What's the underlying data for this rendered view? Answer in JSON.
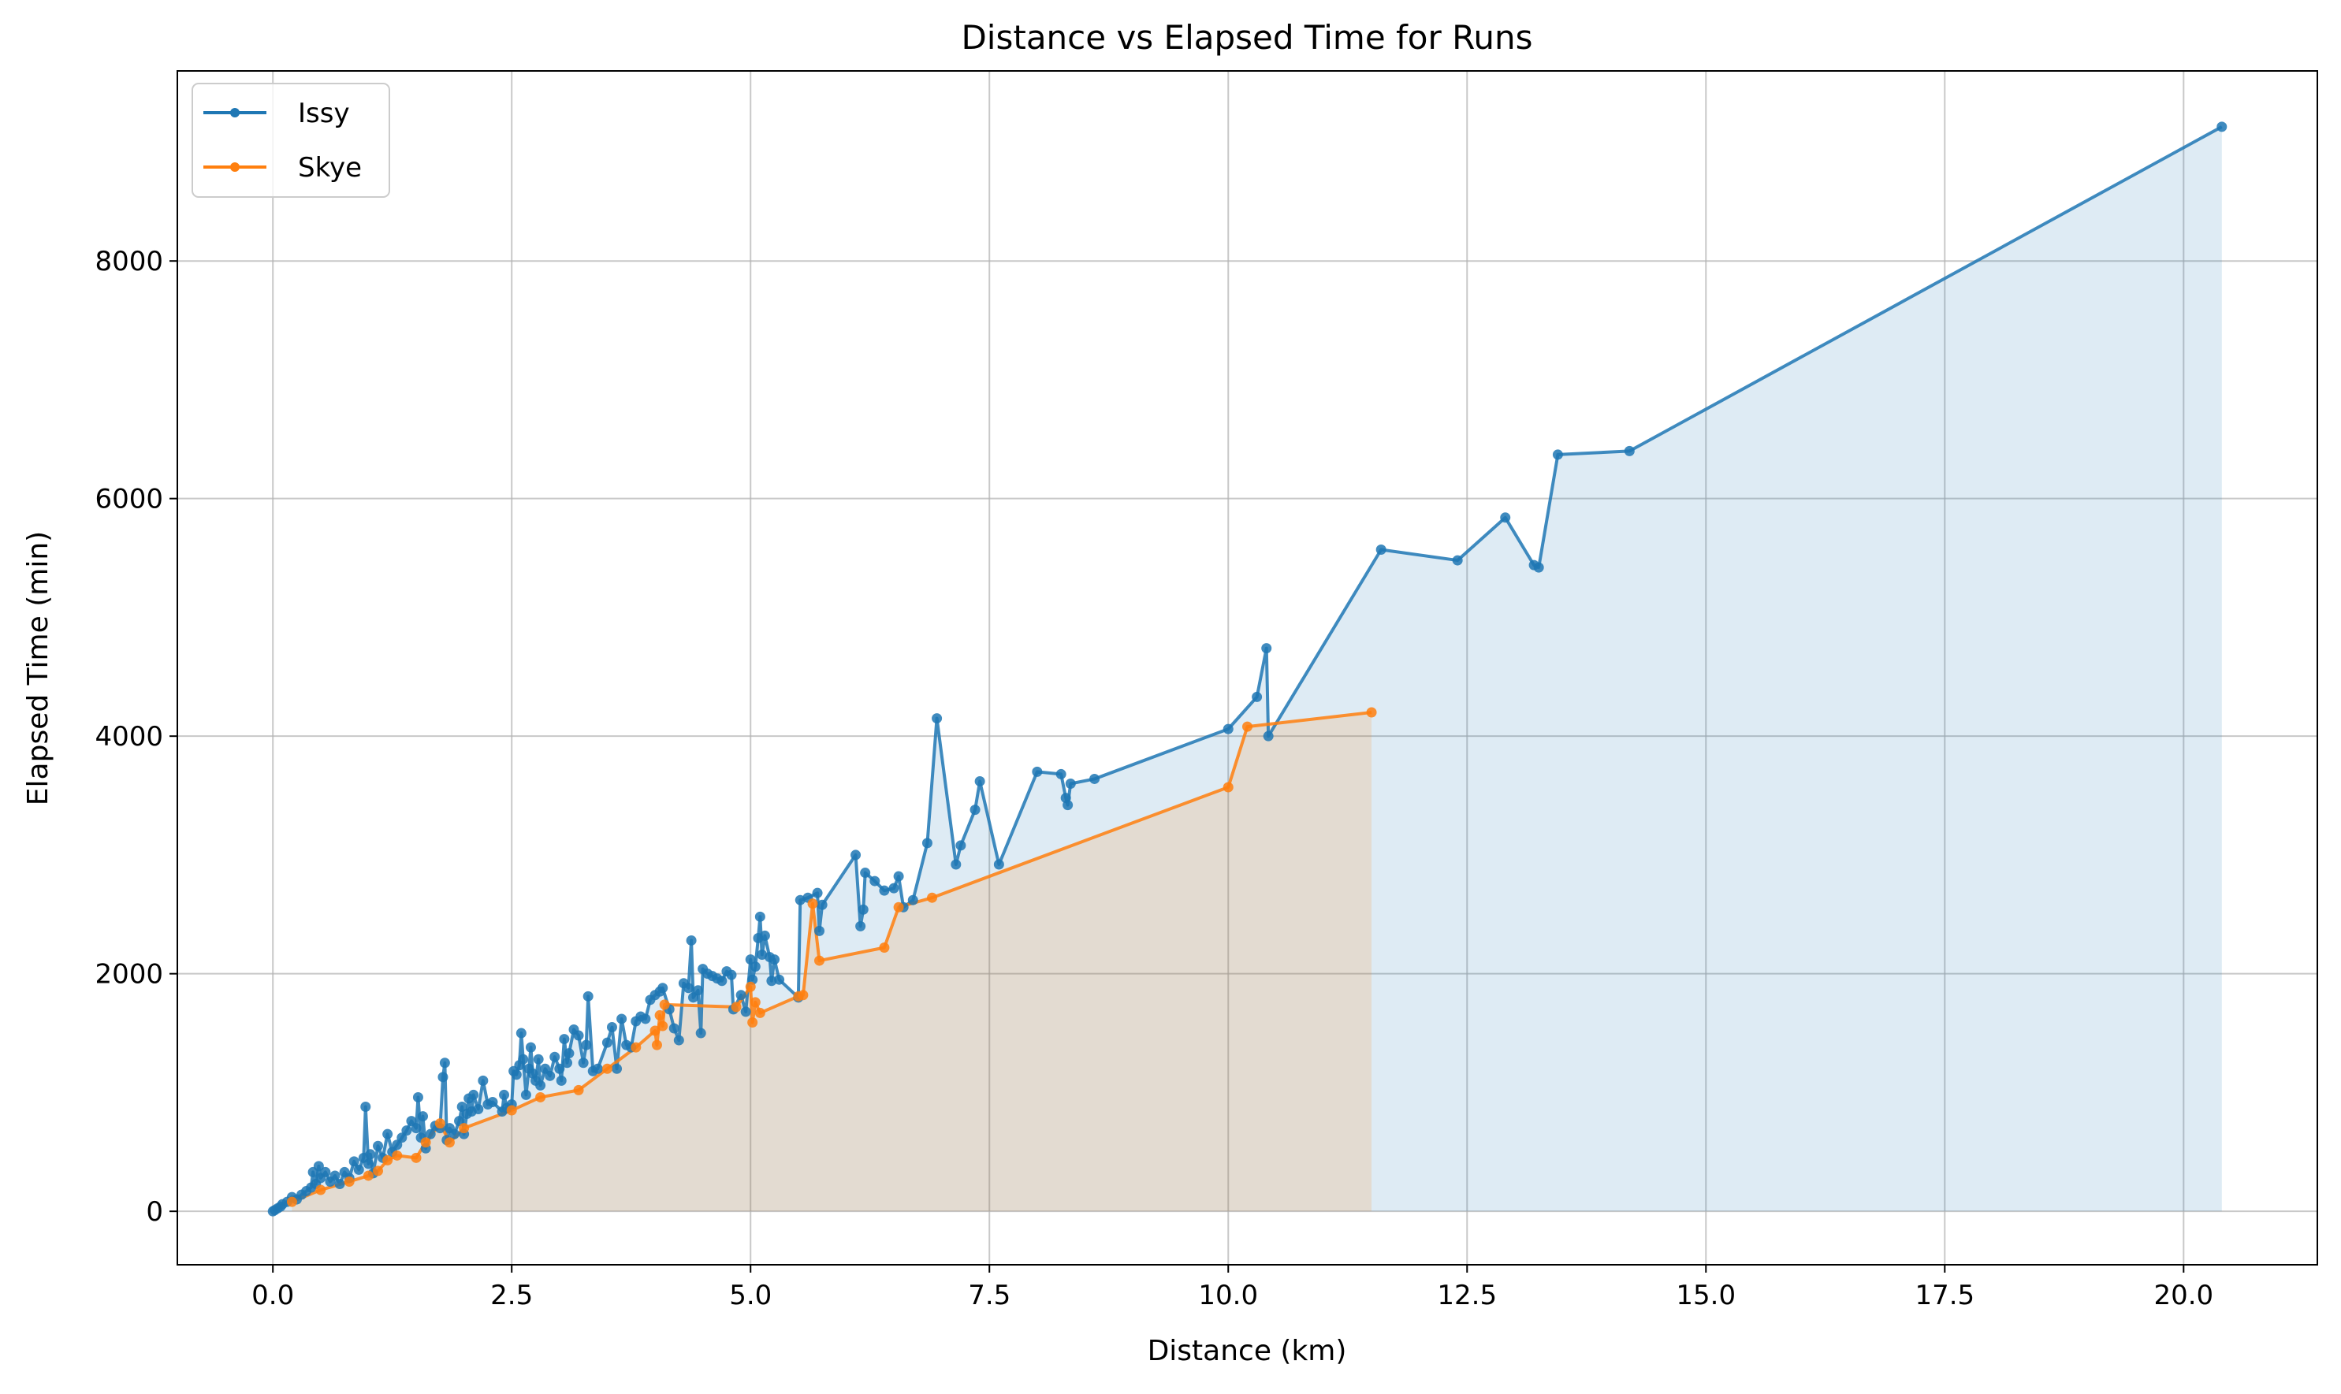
{
  "chart_data": {
    "type": "line",
    "title": "Distance vs Elapsed Time for Runs",
    "xlabel": "Distance (km)",
    "ylabel": "Elapsed Time (min)",
    "xlim": [
      -1.0,
      21.4
    ],
    "ylim": [
      -450,
      9600
    ],
    "xticks": [
      0.0,
      2.5,
      5.0,
      7.5,
      10.0,
      12.5,
      15.0,
      17.5,
      20.0
    ],
    "xtick_labels": [
      "0.0",
      "2.5",
      "5.0",
      "7.5",
      "10.0",
      "12.5",
      "15.0",
      "17.5",
      "20.0"
    ],
    "yticks": [
      0,
      2000,
      4000,
      6000,
      8000
    ],
    "ytick_labels": [
      "0",
      "2000",
      "4000",
      "6000",
      "8000"
    ],
    "grid": true,
    "legend_position": "top-left",
    "area_fill_under_series": true,
    "series": [
      {
        "name": "Issy",
        "color": "#1f77b4",
        "points": [
          [
            0.0,
            0
          ],
          [
            0.02,
            10
          ],
          [
            0.05,
            25
          ],
          [
            0.08,
            40
          ],
          [
            0.1,
            60
          ],
          [
            0.15,
            80
          ],
          [
            0.2,
            120
          ],
          [
            0.25,
            100
          ],
          [
            0.3,
            140
          ],
          [
            0.35,
            170
          ],
          [
            0.4,
            200
          ],
          [
            0.42,
            330
          ],
          [
            0.45,
            230
          ],
          [
            0.48,
            380
          ],
          [
            0.5,
            280
          ],
          [
            0.55,
            330
          ],
          [
            0.6,
            250
          ],
          [
            0.65,
            300
          ],
          [
            0.7,
            230
          ],
          [
            0.75,
            330
          ],
          [
            0.8,
            280
          ],
          [
            0.85,
            420
          ],
          [
            0.9,
            350
          ],
          [
            0.95,
            450
          ],
          [
            0.97,
            880
          ],
          [
            1.0,
            400
          ],
          [
            1.02,
            480
          ],
          [
            1.05,
            320
          ],
          [
            1.1,
            550
          ],
          [
            1.15,
            450
          ],
          [
            1.2,
            650
          ],
          [
            1.25,
            500
          ],
          [
            1.3,
            560
          ],
          [
            1.35,
            620
          ],
          [
            1.4,
            680
          ],
          [
            1.45,
            760
          ],
          [
            1.5,
            700
          ],
          [
            1.52,
            960
          ],
          [
            1.55,
            620
          ],
          [
            1.57,
            800
          ],
          [
            1.6,
            530
          ],
          [
            1.65,
            650
          ],
          [
            1.7,
            720
          ],
          [
            1.75,
            700
          ],
          [
            1.78,
            1130
          ],
          [
            1.8,
            1250
          ],
          [
            1.82,
            600
          ],
          [
            1.85,
            700
          ],
          [
            1.9,
            650
          ],
          [
            1.95,
            760
          ],
          [
            1.98,
            880
          ],
          [
            2.0,
            650
          ],
          [
            2.03,
            820
          ],
          [
            2.05,
            950
          ],
          [
            2.08,
            840
          ],
          [
            2.1,
            980
          ],
          [
            2.15,
            860
          ],
          [
            2.2,
            1100
          ],
          [
            2.25,
            900
          ],
          [
            2.3,
            920
          ],
          [
            2.4,
            840
          ],
          [
            2.42,
            980
          ],
          [
            2.45,
            870
          ],
          [
            2.5,
            900
          ],
          [
            2.52,
            1180
          ],
          [
            2.55,
            1150
          ],
          [
            2.58,
            1230
          ],
          [
            2.6,
            1500
          ],
          [
            2.62,
            1280
          ],
          [
            2.65,
            980
          ],
          [
            2.68,
            1200
          ],
          [
            2.7,
            1380
          ],
          [
            2.72,
            1160
          ],
          [
            2.75,
            1100
          ],
          [
            2.78,
            1280
          ],
          [
            2.8,
            1060
          ],
          [
            2.85,
            1200
          ],
          [
            2.9,
            1140
          ],
          [
            2.95,
            1300
          ],
          [
            3.0,
            1200
          ],
          [
            3.02,
            1100
          ],
          [
            3.05,
            1450
          ],
          [
            3.08,
            1250
          ],
          [
            3.1,
            1330
          ],
          [
            3.15,
            1530
          ],
          [
            3.2,
            1480
          ],
          [
            3.25,
            1250
          ],
          [
            3.28,
            1400
          ],
          [
            3.3,
            1810
          ],
          [
            3.35,
            1180
          ],
          [
            3.4,
            1200
          ],
          [
            3.5,
            1420
          ],
          [
            3.55,
            1550
          ],
          [
            3.6,
            1200
          ],
          [
            3.65,
            1620
          ],
          [
            3.7,
            1400
          ],
          [
            3.75,
            1380
          ],
          [
            3.8,
            1600
          ],
          [
            3.85,
            1640
          ],
          [
            3.9,
            1620
          ],
          [
            3.95,
            1780
          ],
          [
            4.0,
            1820
          ],
          [
            4.05,
            1850
          ],
          [
            4.08,
            1880
          ],
          [
            4.15,
            1700
          ],
          [
            4.2,
            1540
          ],
          [
            4.25,
            1440
          ],
          [
            4.3,
            1920
          ],
          [
            4.35,
            1880
          ],
          [
            4.38,
            2280
          ],
          [
            4.4,
            1800
          ],
          [
            4.45,
            1860
          ],
          [
            4.48,
            1500
          ],
          [
            4.5,
            2040
          ],
          [
            4.55,
            2000
          ],
          [
            4.6,
            1980
          ],
          [
            4.65,
            1960
          ],
          [
            4.7,
            1940
          ],
          [
            4.75,
            2020
          ],
          [
            4.8,
            1990
          ],
          [
            4.82,
            1700
          ],
          [
            4.9,
            1820
          ],
          [
            4.95,
            1680
          ],
          [
            5.0,
            2120
          ],
          [
            5.02,
            1950
          ],
          [
            5.05,
            2060
          ],
          [
            5.08,
            2300
          ],
          [
            5.1,
            2480
          ],
          [
            5.12,
            2160
          ],
          [
            5.15,
            2320
          ],
          [
            5.2,
            2140
          ],
          [
            5.22,
            1940
          ],
          [
            5.25,
            2120
          ],
          [
            5.3,
            1950
          ],
          [
            5.5,
            1800
          ],
          [
            5.52,
            2620
          ],
          [
            5.6,
            2640
          ],
          [
            5.7,
            2680
          ],
          [
            5.72,
            2360
          ],
          [
            5.75,
            2580
          ],
          [
            6.1,
            3000
          ],
          [
            6.15,
            2400
          ],
          [
            6.18,
            2540
          ],
          [
            6.2,
            2850
          ],
          [
            6.3,
            2780
          ],
          [
            6.4,
            2700
          ],
          [
            6.5,
            2720
          ],
          [
            6.55,
            2820
          ],
          [
            6.6,
            2560
          ],
          [
            6.7,
            2620
          ],
          [
            6.85,
            3100
          ],
          [
            6.95,
            4150
          ],
          [
            7.15,
            2920
          ],
          [
            7.2,
            3080
          ],
          [
            7.35,
            3380
          ],
          [
            7.4,
            3620
          ],
          [
            7.6,
            2920
          ],
          [
            8.0,
            3700
          ],
          [
            8.25,
            3680
          ],
          [
            8.3,
            3480
          ],
          [
            8.32,
            3420
          ],
          [
            8.35,
            3600
          ],
          [
            8.6,
            3640
          ],
          [
            10.0,
            4060
          ],
          [
            10.3,
            4330
          ],
          [
            10.4,
            4740
          ],
          [
            10.42,
            4000
          ],
          [
            11.6,
            5570
          ],
          [
            12.4,
            5480
          ],
          [
            12.9,
            5840
          ],
          [
            13.2,
            5440
          ],
          [
            13.25,
            5420
          ],
          [
            13.45,
            6370
          ],
          [
            14.2,
            6400
          ],
          [
            20.4,
            9130
          ]
        ]
      },
      {
        "name": "Skye",
        "color": "#ff7f0e",
        "points": [
          [
            0.2,
            80
          ],
          [
            0.5,
            180
          ],
          [
            0.8,
            250
          ],
          [
            1.0,
            300
          ],
          [
            1.1,
            340
          ],
          [
            1.2,
            430
          ],
          [
            1.3,
            470
          ],
          [
            1.5,
            450
          ],
          [
            1.6,
            580
          ],
          [
            1.75,
            740
          ],
          [
            1.85,
            580
          ],
          [
            2.0,
            700
          ],
          [
            2.5,
            850
          ],
          [
            2.8,
            960
          ],
          [
            3.2,
            1020
          ],
          [
            3.5,
            1200
          ],
          [
            3.8,
            1380
          ],
          [
            4.0,
            1520
          ],
          [
            4.02,
            1400
          ],
          [
            4.05,
            1650
          ],
          [
            4.08,
            1560
          ],
          [
            4.1,
            1740
          ],
          [
            4.85,
            1720
          ],
          [
            5.0,
            1890
          ],
          [
            5.02,
            1590
          ],
          [
            5.05,
            1760
          ],
          [
            5.1,
            1670
          ],
          [
            5.5,
            1810
          ],
          [
            5.55,
            1820
          ],
          [
            5.65,
            2590
          ],
          [
            5.72,
            2110
          ],
          [
            6.4,
            2220
          ],
          [
            6.55,
            2560
          ],
          [
            6.9,
            2640
          ],
          [
            10.0,
            3570
          ],
          [
            10.2,
            4080
          ],
          [
            11.5,
            4200
          ]
        ]
      }
    ]
  }
}
